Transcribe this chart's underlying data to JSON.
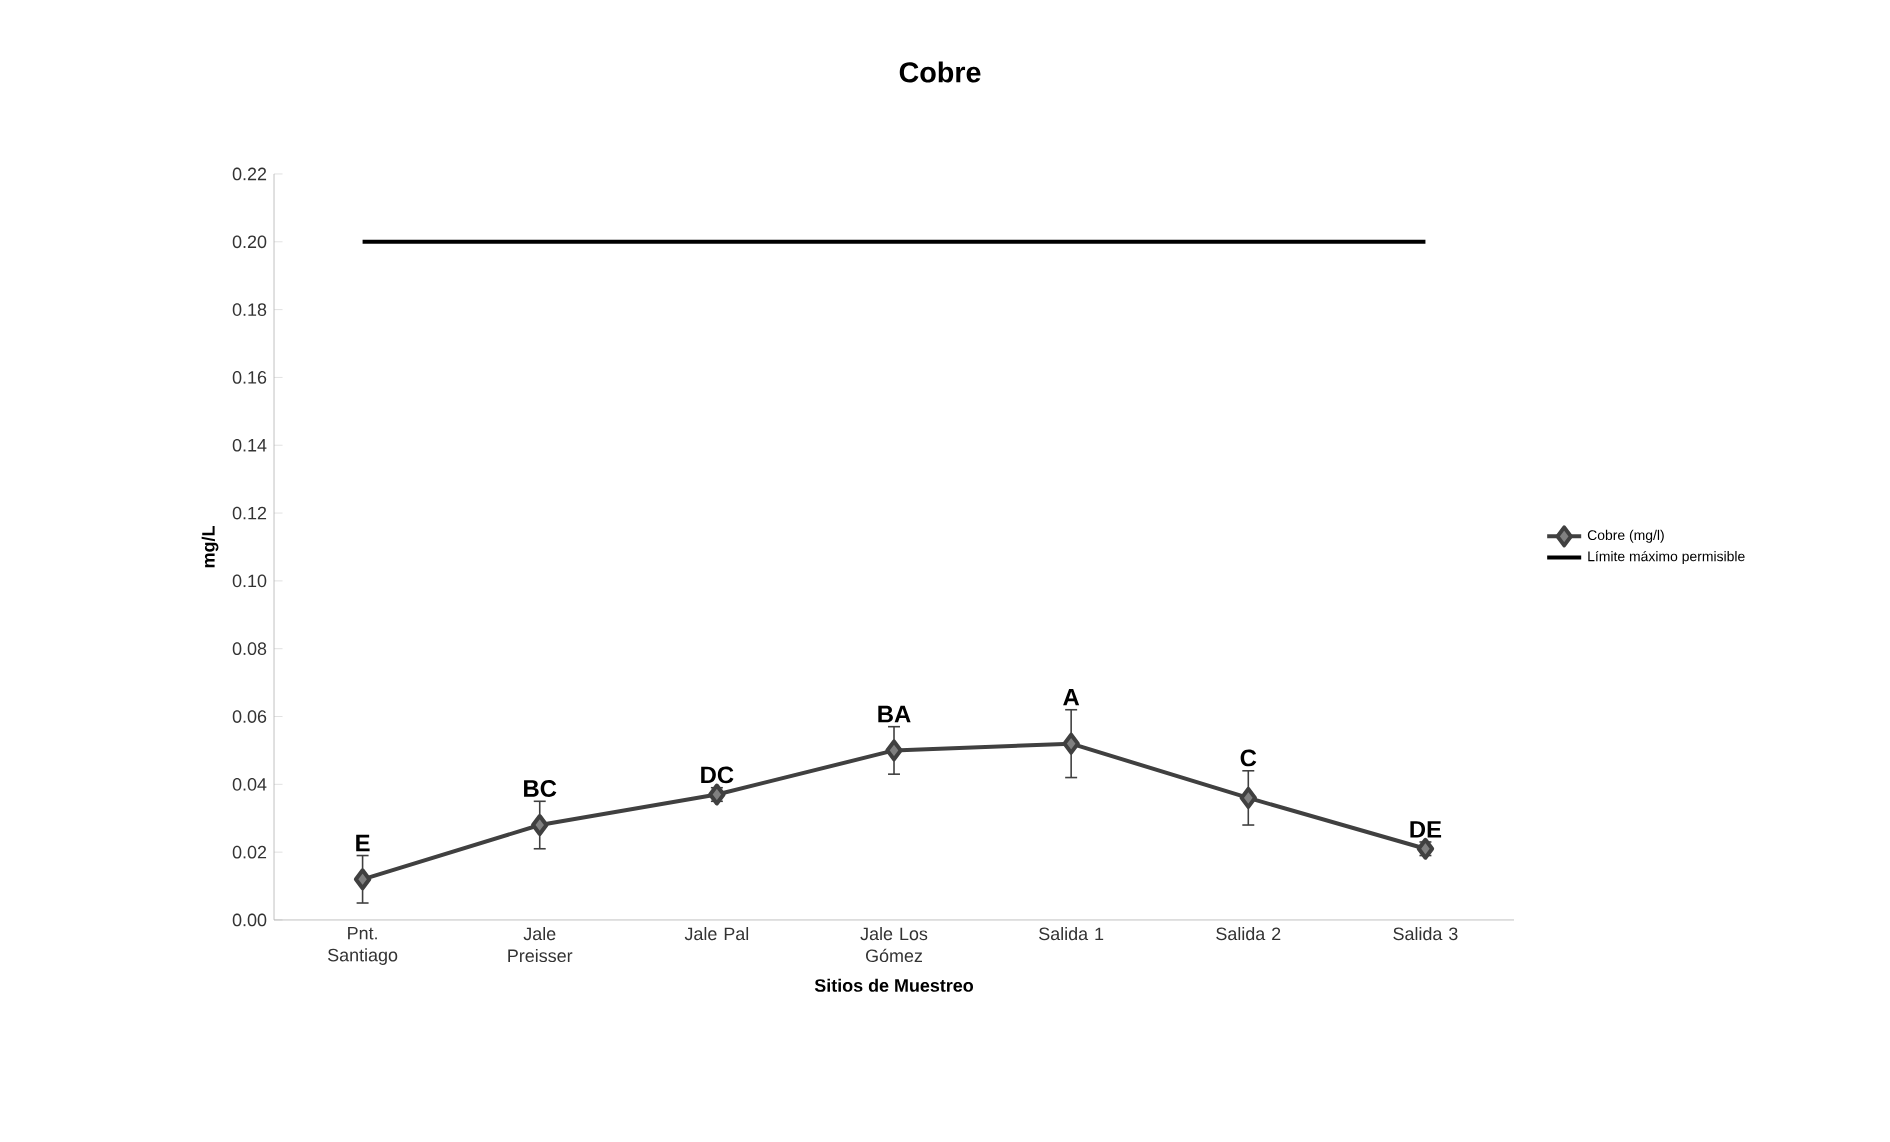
{
  "chart_data": {
    "type": "line",
    "title": "Cobre",
    "xlabel": "Sitios  de Muestreo",
    "ylabel": "mg/L",
    "categories": [
      "Pnt. Santiago",
      "Jale Preisser",
      "Jale Pal",
      "Jale Los Gómez",
      "Salida 1",
      "Salida 2",
      "Salida 3"
    ],
    "series": [
      {
        "name": "Cobre (mg/l)",
        "color": "#404040",
        "marker": "diamond",
        "values": [
          0.012,
          0.028,
          0.037,
          0.05,
          0.052,
          0.036,
          0.021
        ],
        "errors": [
          0.007,
          0.007,
          0.002,
          0.007,
          0.01,
          0.008,
          0.002
        ]
      },
      {
        "name": "Límite máximo permisible",
        "color": "#000000",
        "marker": "none",
        "values": [
          0.2,
          0.2,
          0.2,
          0.2,
          0.2,
          0.2,
          0.2
        ]
      }
    ],
    "annotations": [
      {
        "text": "E",
        "x": "Pnt. Santiago",
        "y": 0.012
      },
      {
        "text": "BC",
        "x": "Jale Preisser",
        "y": 0.028
      },
      {
        "text": "DC",
        "x": "Jale Pal",
        "y": 0.037
      },
      {
        "text": "BA",
        "x": "Jale Los Gómez",
        "y": 0.05
      },
      {
        "text": "A",
        "x": "Salida 1",
        "y": 0.052
      },
      {
        "text": "C",
        "x": "Salida 2",
        "y": 0.036
      },
      {
        "text": "DE",
        "x": "Salida 3",
        "y": 0.021
      }
    ],
    "ylim": [
      0,
      0.22
    ],
    "yticks": [
      {
        "value": 0,
        "label": "0.00"
      },
      {
        "value": 0.02,
        "label": "0.02"
      },
      {
        "value": 0.04,
        "label": "0.04"
      },
      {
        "value": 0.06,
        "label": "0.06"
      },
      {
        "value": 0.08,
        "label": "0.08"
      },
      {
        "value": 0.1,
        "label": "0.10"
      },
      {
        "value": 0.12,
        "label": "0.12"
      },
      {
        "value": 0.14,
        "label": "0.14"
      },
      {
        "value": 0.16,
        "label": "0.16"
      },
      {
        "value": 0.18,
        "label": "0.18"
      },
      {
        "value": 0.2,
        "label": "0.20"
      },
      {
        "value": 0.22,
        "label": "0.22"
      }
    ],
    "legend": "right",
    "grid": false
  }
}
